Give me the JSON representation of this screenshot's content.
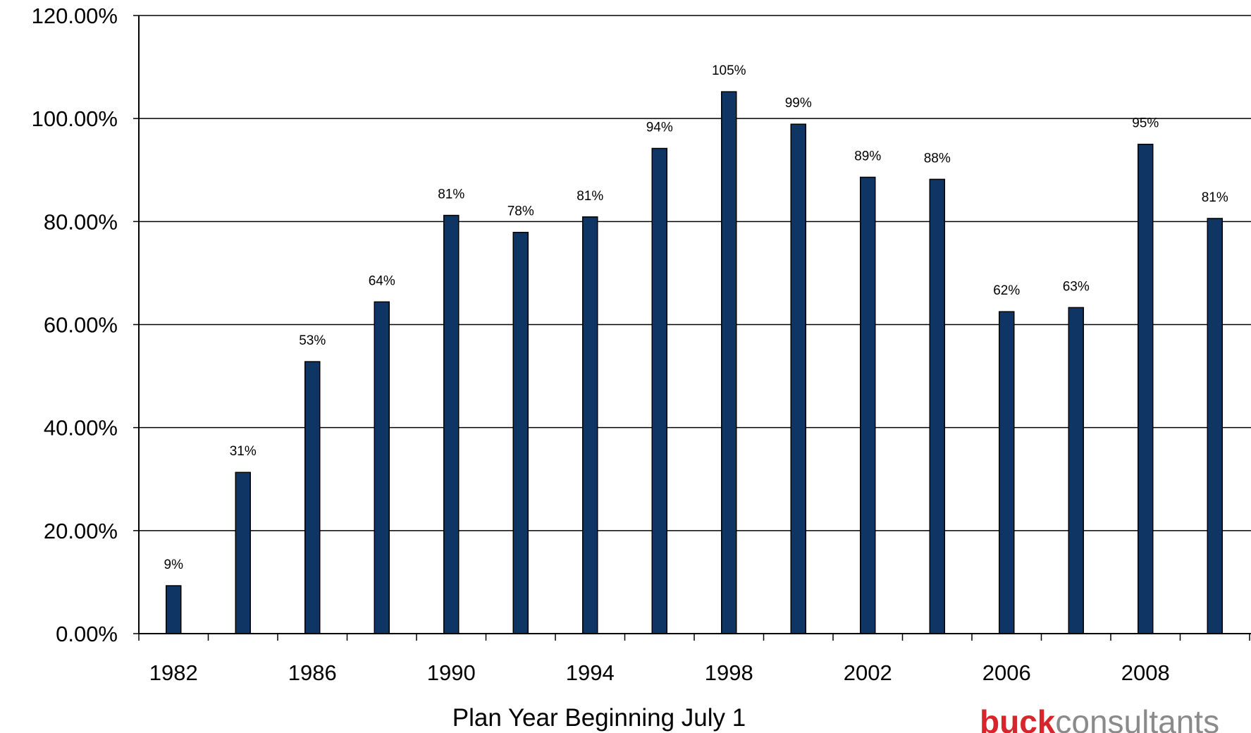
{
  "chart_data": {
    "type": "bar",
    "categories": [
      "1982",
      "1984",
      "1986",
      "1988",
      "1990",
      "1992",
      "1994",
      "1996",
      "1998",
      "2000",
      "2002",
      "2004",
      "2006",
      "2007",
      "2008",
      "2009"
    ],
    "values": [
      9.3,
      31.3,
      52.8,
      64.4,
      81.2,
      77.9,
      80.9,
      94.2,
      105.2,
      98.9,
      88.6,
      88.2,
      62.5,
      63.3,
      95.0,
      80.6
    ],
    "data_labels": [
      "9%",
      "31%",
      "53%",
      "64%",
      "81%",
      "78%",
      "81%",
      "94%",
      "105%",
      "99%",
      "89%",
      "88%",
      "62%",
      "63%",
      "95%",
      "81%"
    ],
    "y_ticks": [
      "0.00%",
      "20.00%",
      "40.00%",
      "60.00%",
      "80.00%",
      "100.00%",
      "120.00%"
    ],
    "x_tick_labels": [
      "1982",
      "1986",
      "1990",
      "1994",
      "1998",
      "2002",
      "2006",
      "2008"
    ],
    "xlabel": "Plan Year Beginning July 1",
    "ylabel": "",
    "ylim": [
      0,
      120
    ],
    "grid": true,
    "bar_color": "#0f3564"
  },
  "logo": {
    "brand": "buck",
    "suffix": "consultants",
    "brand_color": "#d7262b",
    "suffix_color": "#8a8a8a"
  }
}
